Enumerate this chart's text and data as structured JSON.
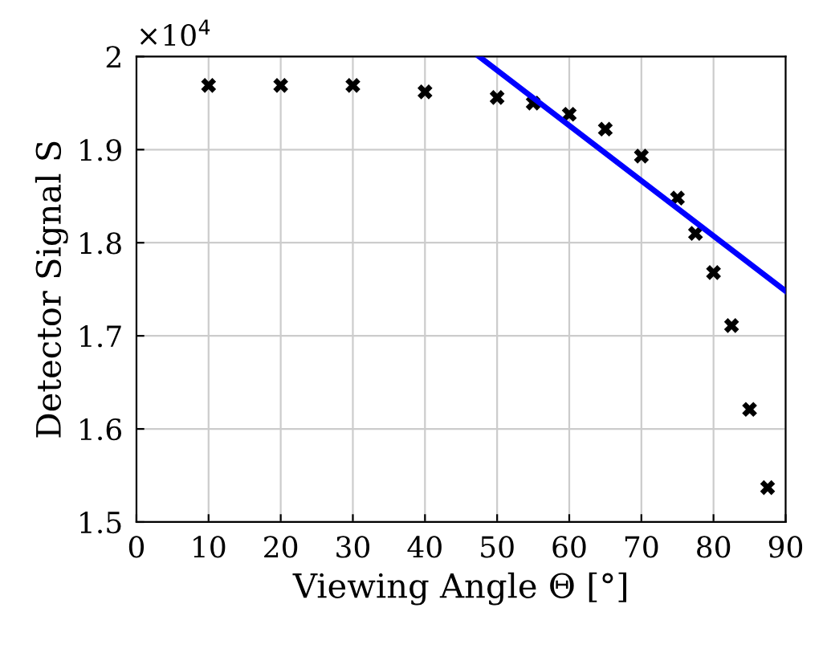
{
  "chart_data": {
    "type": "scatter",
    "xlabel": "Viewing Angle Θ [°]",
    "ylabel": "Detector Signal S",
    "annotations": [
      "×10$^{4}$"
    ],
    "series": [
      {
        "color": "#000000",
        "marker": "cross",
        "x": [
          10,
          20,
          30,
          40,
          50,
          55,
          60,
          65,
          70,
          75,
          77.5,
          80,
          82.5,
          85,
          87.5
        ],
        "values": [
          1.969,
          1.969,
          1.969,
          1.962,
          1.956,
          1.95,
          1.938,
          1.922,
          1.893,
          1.848,
          1.81,
          1.768,
          1.711,
          1.621,
          1.537
        ]
      },
      {
        "type": "line",
        "color": "#0000ff",
        "marker": "none",
        "line_style": "solid",
        "x": [
          47.5,
          90
        ],
        "values": [
          2.0,
          1.748
        ]
      }
    ],
    "xlim": [
      0,
      90
    ],
    "ylim": [
      1.5,
      2
    ],
    "xticks": [
      0,
      10,
      20,
      30,
      40,
      50,
      60,
      70,
      80,
      90
    ],
    "yticks": [
      1.5,
      1.6,
      1.7,
      1.8,
      1.9,
      2
    ],
    "grid": true,
    "legend": false
  }
}
